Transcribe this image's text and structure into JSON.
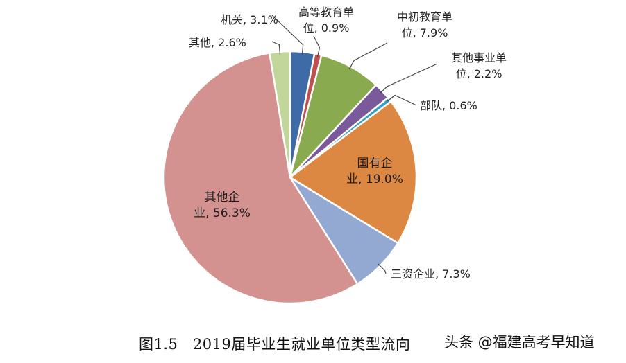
{
  "chart_data": {
    "type": "pie",
    "slices": [
      {
        "label_lines": [
          "机关, 3.1%"
        ],
        "value": 3.1,
        "color": "#3e6aa5"
      },
      {
        "label_lines": [
          "高等教育单",
          "位, 0.9%"
        ],
        "value": 0.9,
        "color": "#c0504d"
      },
      {
        "label_lines": [
          "中初教育单",
          "位, 7.9%"
        ],
        "value": 7.9,
        "color": "#8aaa4f"
      },
      {
        "label_lines": [
          "其他事业单",
          "位, 2.2%"
        ],
        "value": 2.2,
        "color": "#7a5a9a"
      },
      {
        "label_lines": [
          "部队, 0.6%"
        ],
        "value": 0.6,
        "color": "#31a0c0"
      },
      {
        "label_lines": [
          "国有企",
          "业, 19.0%"
        ],
        "value": 19.0,
        "color": "#dd8842"
      },
      {
        "label_lines": [
          "三资企业, 7.3%"
        ],
        "value": 7.3,
        "color": "#94a9d2"
      },
      {
        "label_lines": [
          "其他企",
          "业, 56.3%"
        ],
        "value": 56.3,
        "color": "#d39290"
      },
      {
        "label_lines": [
          "其他, 2.6%"
        ],
        "value": 2.6,
        "color": "#c2d69b"
      }
    ]
  },
  "caption": "图1.5　2019届毕业生就业单位类型流向",
  "watermark": "头条 @福建高考早知道"
}
